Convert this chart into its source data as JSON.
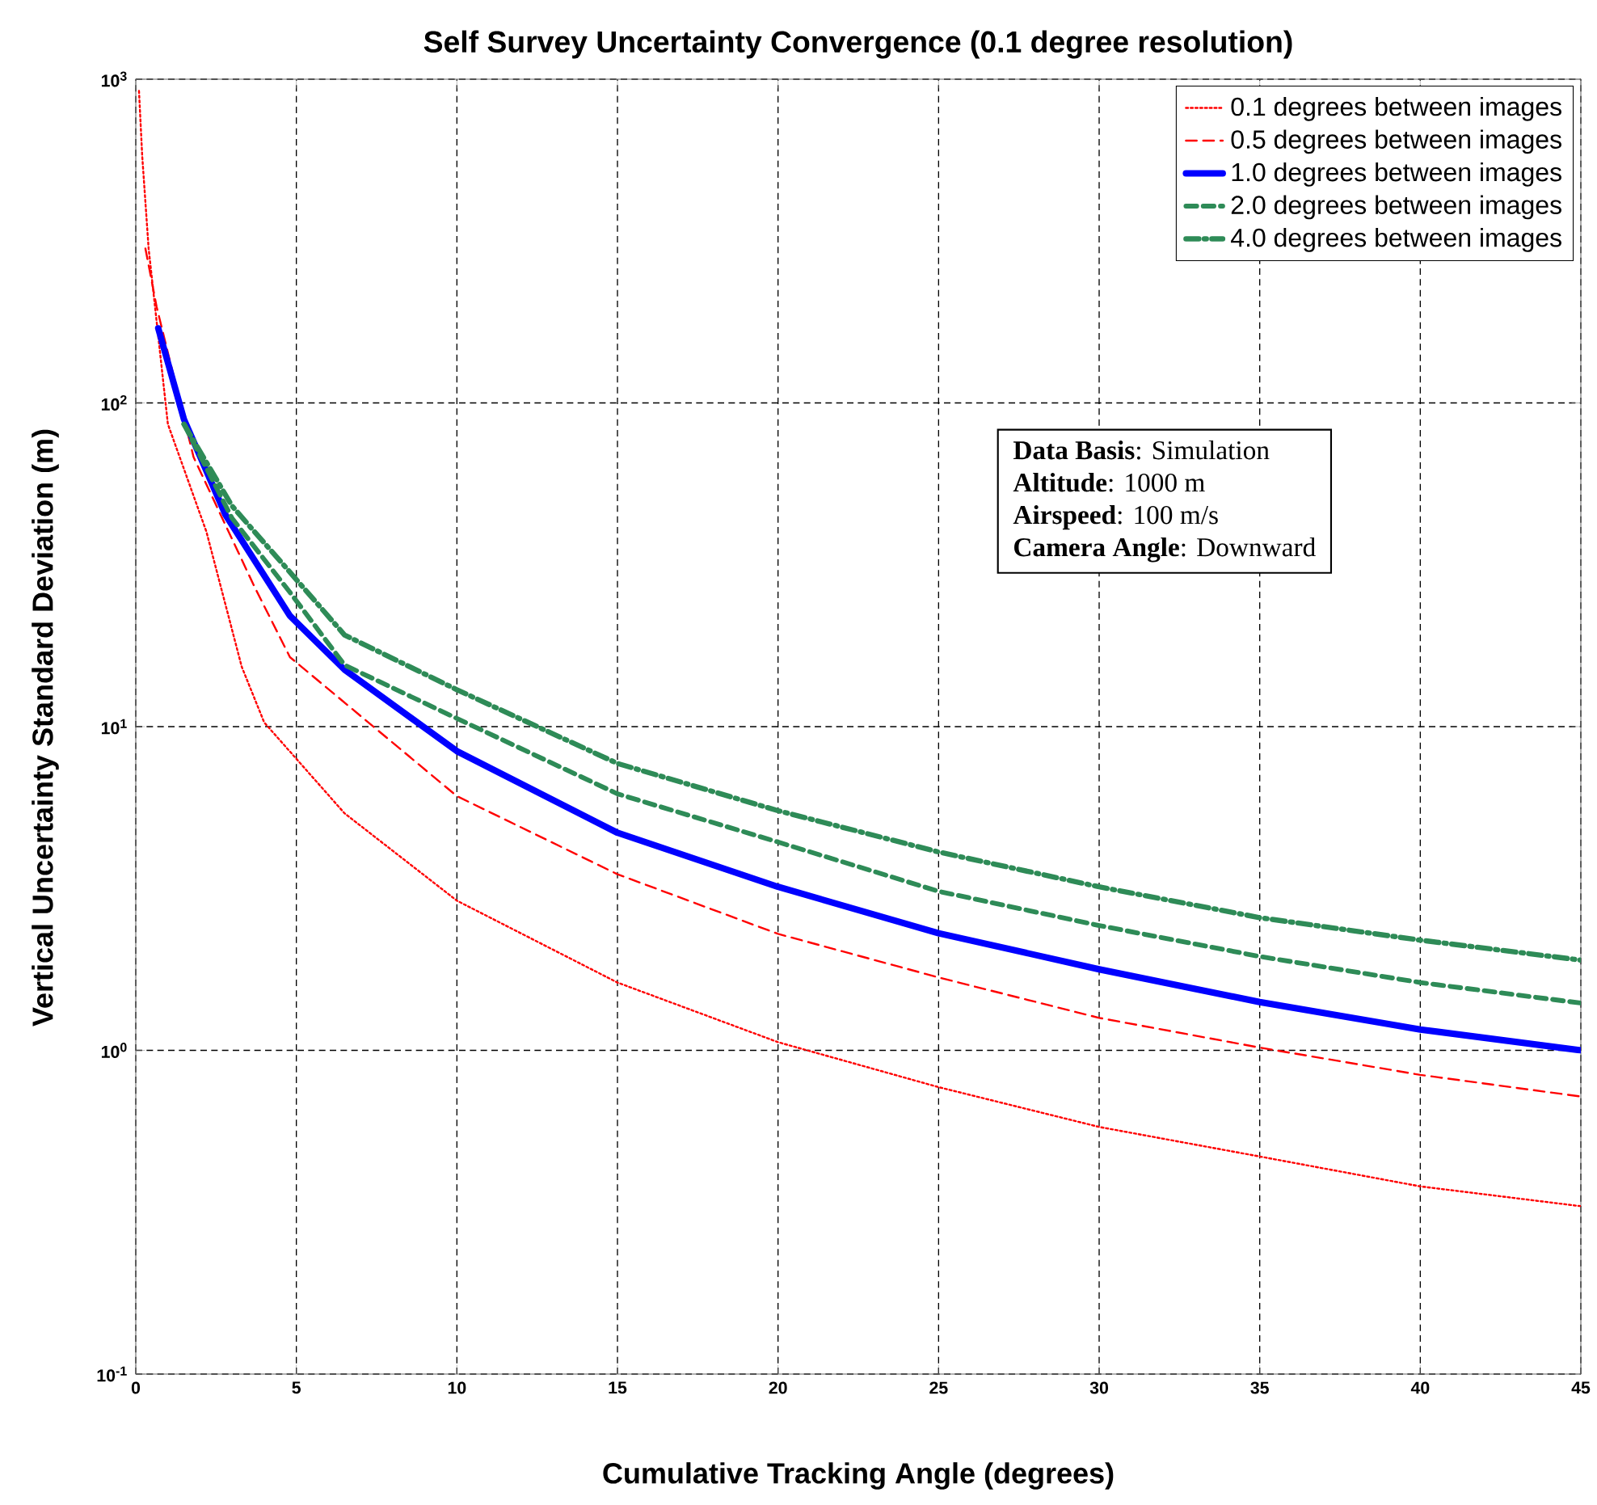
{
  "chart_data": {
    "type": "line",
    "title": "Self Survey Uncertainty Convergence (0.1 degree resolution)",
    "xlabel": "Cumulative Tracking Angle (degrees)",
    "ylabel": "Vertical Uncertainty Standard Deviation (m)",
    "xlim": [
      0,
      45
    ],
    "xticks": [
      0,
      5,
      10,
      15,
      20,
      25,
      30,
      35,
      40,
      45
    ],
    "ylim": [
      0.1,
      1000
    ],
    "yticks": [
      {
        "value": 0.1,
        "label": "10$^{-1}$"
      },
      {
        "value": 1,
        "label": "10$^{0}$"
      },
      {
        "value": 10,
        "label": "10$^{1}$"
      },
      {
        "value": 100,
        "label": "10$^{2}$"
      },
      {
        "value": 1000,
        "label": "10$^{3}$"
      }
    ],
    "log": "y",
    "grid": true,
    "legend": "top right",
    "series": [
      {
        "name": "0.1 degrees between images",
        "color": "#ff0000",
        "line_style": "dotted",
        "x": [
          0.1,
          0.2,
          0.4,
          1.0,
          2.2,
          3.3,
          4.0,
          6.5,
          10,
          15,
          20,
          25,
          30,
          35,
          40,
          45
        ],
        "values": [
          920,
          580,
          300,
          86,
          40,
          15.3,
          10.3,
          5.4,
          2.9,
          1.62,
          1.06,
          0.77,
          0.58,
          0.47,
          0.38,
          0.33
        ]
      },
      {
        "name": "0.5 degrees between images",
        "color": "#ff0000",
        "line_style": "dashed",
        "x": [
          0.3,
          0.65,
          1.8,
          3.7,
          4.8,
          10,
          15,
          20,
          25,
          30,
          35,
          40,
          45
        ],
        "values": [
          300,
          198,
          68,
          27,
          16.4,
          6.1,
          3.5,
          2.29,
          1.68,
          1.26,
          1.02,
          0.84,
          0.72
        ]
      },
      {
        "name": "1.0 degrees between images",
        "color": "#0000ff",
        "line_style": "solid",
        "x": [
          0.7,
          1.5,
          2.8,
          4.8,
          6.5,
          10,
          15,
          20,
          25,
          30,
          35,
          40,
          45
        ],
        "values": [
          170,
          89,
          45,
          22,
          15,
          8.4,
          4.7,
          3.2,
          2.3,
          1.78,
          1.41,
          1.16,
          1.0
        ]
      },
      {
        "name": "2.0 degrees between images",
        "color": "#2e8b57",
        "line_style": "dashed",
        "x": [
          1.5,
          3.0,
          4.8,
          6.5,
          10,
          15,
          20,
          25,
          30,
          35,
          40,
          45
        ],
        "values": [
          86,
          44,
          26,
          15.5,
          10.6,
          6.2,
          4.4,
          3.1,
          2.43,
          1.95,
          1.62,
          1.4
        ]
      },
      {
        "name": "4.0 degrees between images",
        "color": "#2e8b57",
        "line_style": "dashdot",
        "x": [
          1.5,
          3.0,
          4.8,
          6.5,
          10,
          15,
          20,
          25,
          30,
          35,
          40,
          45
        ],
        "values": [
          86,
          48,
          30,
          19.2,
          13,
          7.7,
          5.5,
          4.1,
          3.2,
          2.57,
          2.19,
          1.9
        ]
      }
    ],
    "annotations": [
      "**Data Basis**: Simulation",
      "**Altitude**: 1000 m",
      "**Airspeed**: 100 m/s",
      "**Camera Angle**: Downward"
    ]
  }
}
